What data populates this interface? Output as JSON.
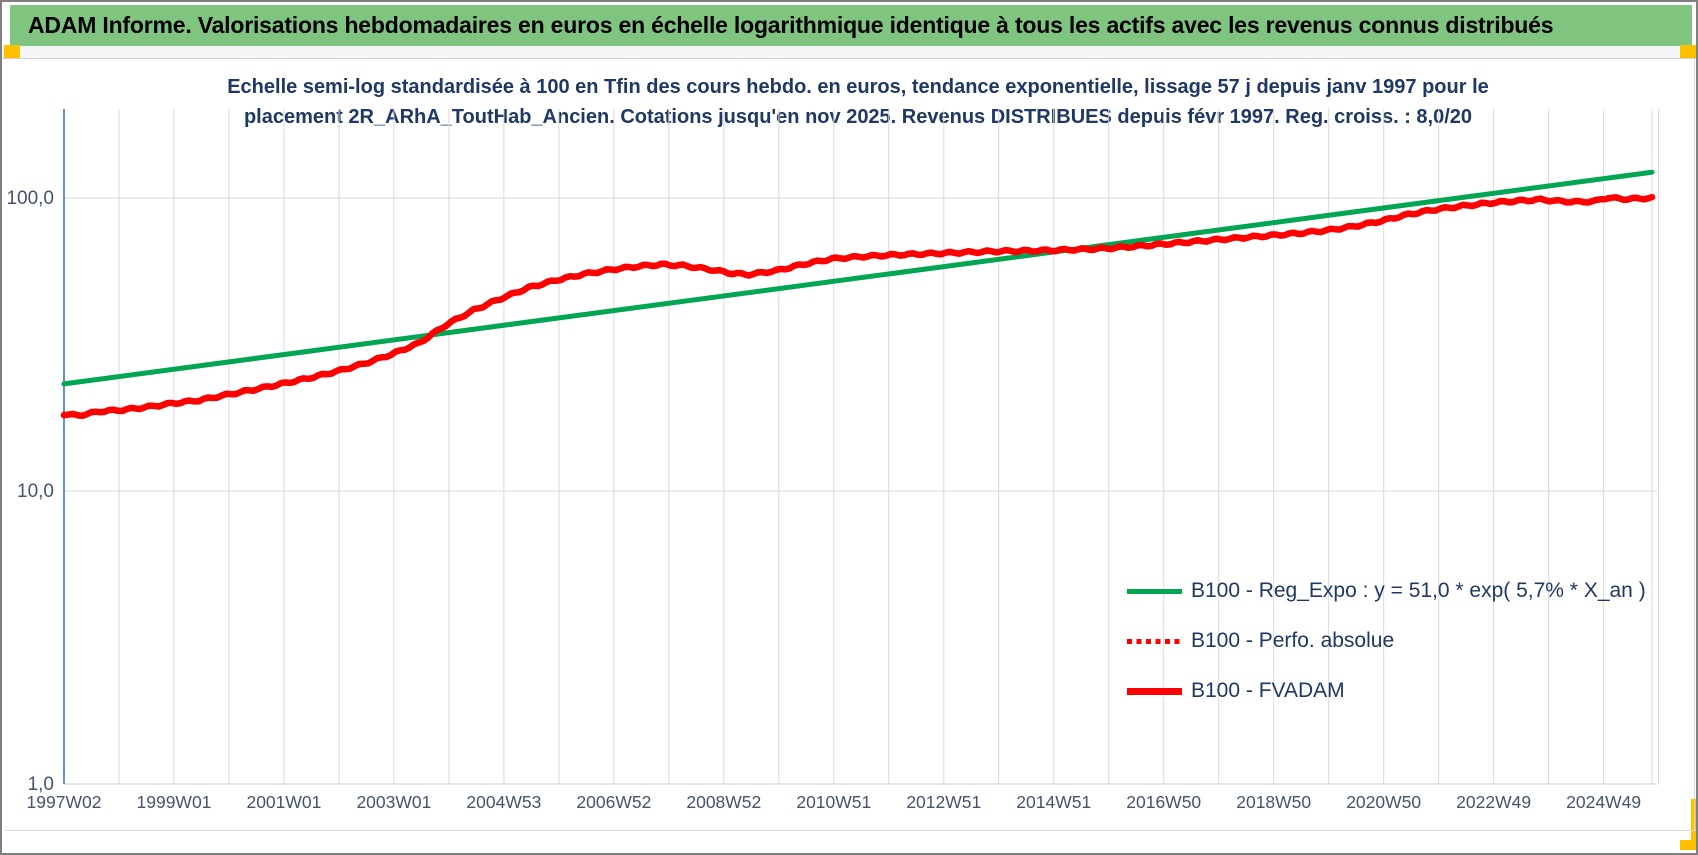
{
  "header": {
    "title": "ADAM Informe. Valorisations hebdomadaires en euros en échelle logarithmique identique à tous les actifs avec les revenus connus distribués"
  },
  "subtitle": {
    "line1": "Echelle semi-log standardisée à 100 en Tfin des cours hebdo. en euros, tendance exponentielle, lissage 57 j depuis janv 1997 pour le",
    "line2": "placement 2R_ARhA_ToutHab_Ancien. Cotations jusqu'en nov 2025. Revenus DISTRIBUES depuis févr 1997. Reg. croiss. : 8,0/20"
  },
  "legend": {
    "items": [
      {
        "label": "B100 - Reg_Expo : y = 51,0 * exp( 5,7% *  X_an )",
        "color": "#00a651",
        "style": "solid"
      },
      {
        "label": "B100 - Perfo. absolue",
        "color": "#ff0000",
        "style": "dotted"
      },
      {
        "label": "B100 - FVADAM",
        "color": "#ff0000",
        "style": "solid-thick"
      }
    ]
  },
  "colors": {
    "header_bg": "#7fc57f",
    "subtitle_text": "#1f3864",
    "tick_text": "#44546a",
    "gridline": "#d9d9d9",
    "axis_line": "#4472c4",
    "regression_green": "#00a651",
    "series_red": "#ff0000",
    "handle_orange": "#ffc000"
  },
  "chart_data": {
    "type": "line",
    "y_scale": "log10",
    "x_domain": [
      1997.04,
      2025.92
    ],
    "y_domain": [
      1,
      200
    ],
    "grid": "on",
    "legend_position": "inside-lower-right",
    "y_gridline_values": [
      100,
      10,
      1
    ],
    "y_ticks": [
      {
        "label": "100,0",
        "value": 100
      },
      {
        "label": "10,0",
        "value": 10
      },
      {
        "label": "1,0",
        "value": 1
      }
    ],
    "x_gridline_step_years": 1,
    "x_ticks": [
      {
        "label": "1997W02",
        "year": 1997.04
      },
      {
        "label": "1999W01",
        "year": 1999.04
      },
      {
        "label": "2001W01",
        "year": 2001.04
      },
      {
        "label": "2003W01",
        "year": 2003.04
      },
      {
        "label": "2004W53",
        "year": 2005.04
      },
      {
        "label": "2006W52",
        "year": 2007.04
      },
      {
        "label": "2008W52",
        "year": 2009.04
      },
      {
        "label": "2010W51",
        "year": 2011.04
      },
      {
        "label": "2012W51",
        "year": 2013.04
      },
      {
        "label": "2014W51",
        "year": 2015.04
      },
      {
        "label": "2016W50",
        "year": 2017.04
      },
      {
        "label": "2018W50",
        "year": 2019.04
      },
      {
        "label": "2020W50",
        "year": 2021.04
      },
      {
        "label": "2022W49",
        "year": 2023.04
      },
      {
        "label": "2024W49",
        "year": 2025.04
      }
    ],
    "series": [
      {
        "name": "B100 - Reg_Expo : y = 51,0 * exp( 5,7% *  X_an )",
        "color": "#00a651",
        "style": "solid",
        "width": 5,
        "points": [
          [
            1997.04,
            23.2
          ],
          [
            2025.92,
            122.5
          ]
        ]
      },
      {
        "name": "B100 - Perfo. absolue",
        "color": "#ff0000",
        "style": "dotted",
        "width": 5,
        "same_as": "B100 - FVADAM"
      },
      {
        "name": "B100 - FVADAM",
        "color": "#ff0000",
        "style": "solid",
        "width": 6.5,
        "points": [
          [
            1997.04,
            18.3
          ],
          [
            1997.3,
            18.1
          ],
          [
            1997.7,
            18.7
          ],
          [
            1998.1,
            18.9
          ],
          [
            1998.6,
            19.4
          ],
          [
            1999.0,
            19.9
          ],
          [
            1999.5,
            20.4
          ],
          [
            2000.0,
            21.3
          ],
          [
            2000.5,
            22.2
          ],
          [
            2001.0,
            23.2
          ],
          [
            2001.5,
            24.3
          ],
          [
            2002.0,
            25.6
          ],
          [
            2002.5,
            27.2
          ],
          [
            2003.0,
            29.3
          ],
          [
            2003.5,
            32.0
          ],
          [
            2004.0,
            37.0
          ],
          [
            2004.5,
            41.5
          ],
          [
            2005.0,
            45.5
          ],
          [
            2005.5,
            49.5
          ],
          [
            2006.0,
            52.5
          ],
          [
            2006.5,
            55.0
          ],
          [
            2007.0,
            57.0
          ],
          [
            2007.5,
            58.5
          ],
          [
            2007.9,
            59.3
          ],
          [
            2008.3,
            58.8
          ],
          [
            2008.8,
            57.0
          ],
          [
            2009.2,
            55.3
          ],
          [
            2009.5,
            54.8
          ],
          [
            2010.0,
            56.5
          ],
          [
            2010.5,
            59.5
          ],
          [
            2011.0,
            62.0
          ],
          [
            2011.5,
            63.0
          ],
          [
            2012.0,
            63.8
          ],
          [
            2012.5,
            64.3
          ],
          [
            2013.0,
            64.8
          ],
          [
            2013.5,
            65.3
          ],
          [
            2014.0,
            65.8
          ],
          [
            2014.5,
            66.0
          ],
          [
            2015.0,
            66.3
          ],
          [
            2015.6,
            66.8
          ],
          [
            2016.0,
            67.3
          ],
          [
            2016.5,
            68.3
          ],
          [
            2017.0,
            69.5
          ],
          [
            2017.5,
            70.8
          ],
          [
            2018.0,
            72.0
          ],
          [
            2018.5,
            73.3
          ],
          [
            2019.0,
            74.5
          ],
          [
            2019.5,
            75.8
          ],
          [
            2020.0,
            77.5
          ],
          [
            2020.5,
            80.0
          ],
          [
            2021.0,
            83.5
          ],
          [
            2021.5,
            88.0
          ],
          [
            2022.0,
            91.5
          ],
          [
            2022.5,
            94.0
          ],
          [
            2023.0,
            96.3
          ],
          [
            2023.5,
            97.8
          ],
          [
            2023.9,
            98.8
          ],
          [
            2024.2,
            97.6
          ],
          [
            2024.6,
            96.9
          ],
          [
            2024.9,
            97.6
          ],
          [
            2025.1,
            100.3
          ],
          [
            2025.4,
            99.2
          ],
          [
            2025.7,
            99.6
          ],
          [
            2025.92,
            100.0
          ]
        ]
      }
    ]
  }
}
